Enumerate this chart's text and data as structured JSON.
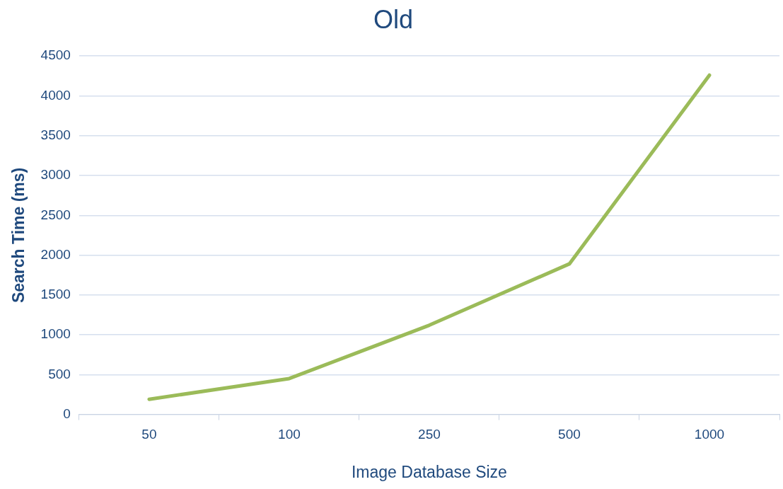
{
  "chart_data": {
    "type": "line",
    "title": "Old",
    "xlabel": "Image Database Size",
    "ylabel": "Search Time (ms)",
    "categories": [
      "50",
      "100",
      "250",
      "500",
      "1000"
    ],
    "series": [
      {
        "color": "#9bbb59",
        "values": [
          190,
          450,
          1120,
          1890,
          4260
        ]
      }
    ],
    "ylim": [
      0,
      4500
    ],
    "yticks": [
      0,
      500,
      1000,
      1500,
      2000,
      2500,
      3000,
      3500,
      4000,
      4500
    ],
    "grid": "y",
    "marker": "none",
    "line_style": "solid"
  }
}
